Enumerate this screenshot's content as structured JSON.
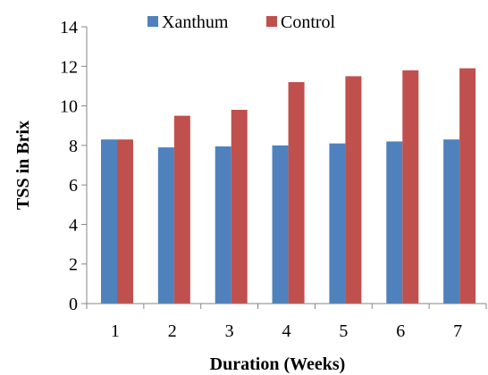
{
  "chart_data": {
    "type": "bar",
    "categories": [
      "1",
      "2",
      "3",
      "4",
      "5",
      "6",
      "7"
    ],
    "series": [
      {
        "name": "Xanthum",
        "color": "#4f81bd",
        "values": [
          8.3,
          7.9,
          7.95,
          8.0,
          8.1,
          8.2,
          8.3
        ]
      },
      {
        "name": "Control",
        "color": "#c0504d",
        "values": [
          8.3,
          9.5,
          9.8,
          11.2,
          11.5,
          11.8,
          11.9
        ]
      }
    ],
    "title": "",
    "xlabel": "Duration (Weeks)",
    "ylabel": "TSS in Brix",
    "ylim": [
      0,
      14
    ],
    "yticks": [
      0,
      2,
      4,
      6,
      8,
      10,
      12,
      14
    ],
    "grid": false,
    "legend_position": "top-center"
  }
}
